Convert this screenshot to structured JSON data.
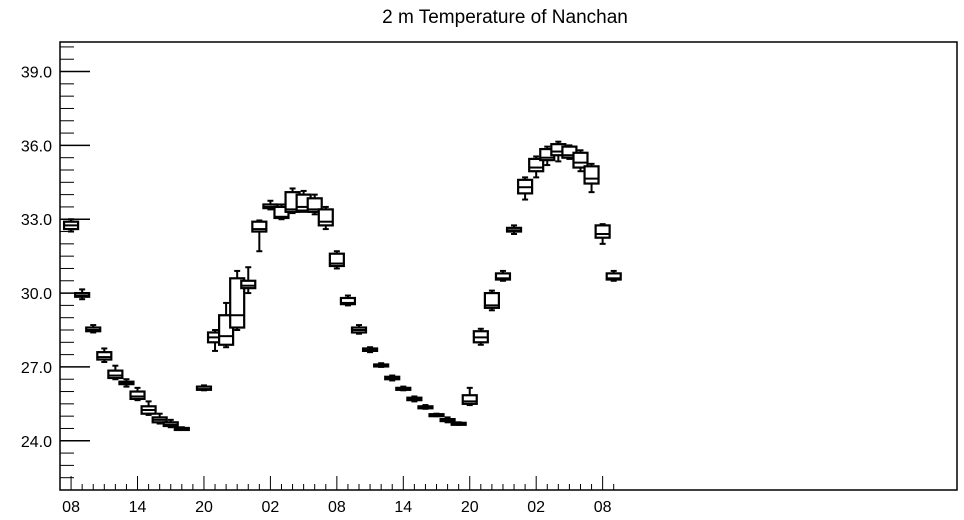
{
  "chart_data": {
    "type": "box",
    "title": "2 m Temperature of Nanchan",
    "xlabel": "",
    "ylabel": "",
    "ylim": [
      22.0,
      40.2
    ],
    "yticks": [
      "24.0",
      "27.0",
      "30.0",
      "33.0",
      "36.0",
      "39.0"
    ],
    "ytick_values": [
      24.0,
      27.0,
      30.0,
      33.0,
      36.0,
      39.0
    ],
    "y_minor_step": 0.5,
    "xlim": [
      0,
      81
    ],
    "xticks": [
      "08",
      "14",
      "20",
      "02",
      "08",
      "14",
      "20",
      "02",
      "08"
    ],
    "xtick_positions": [
      1,
      7,
      13,
      19,
      25,
      31,
      37,
      43,
      49
    ],
    "x_units": "hours (index 1 = 08)",
    "grid": false,
    "legend": "none",
    "colors": {
      "stroke": "#000000",
      "box_fill": "#ffffff",
      "background": "#ffffff"
    },
    "boxes": [
      {
        "x": 1,
        "min": 32.5,
        "q1": 32.6,
        "median": 32.75,
        "q3": 32.9,
        "max": 33.0
      },
      {
        "x": 2,
        "min": 29.75,
        "q1": 29.85,
        "median": 29.9,
        "q3": 30.0,
        "max": 30.15
      },
      {
        "x": 3,
        "min": 28.4,
        "q1": 28.45,
        "median": 28.5,
        "q3": 28.6,
        "max": 28.7
      },
      {
        "x": 4,
        "min": 27.2,
        "q1": 27.3,
        "median": 27.4,
        "q3": 27.6,
        "max": 27.75
      },
      {
        "x": 5,
        "min": 26.5,
        "q1": 26.55,
        "median": 26.65,
        "q3": 26.85,
        "max": 27.05
      },
      {
        "x": 6,
        "min": 26.2,
        "q1": 26.3,
        "median": 26.35,
        "q3": 26.4,
        "max": 26.5
      },
      {
        "x": 7,
        "min": 25.65,
        "q1": 25.7,
        "median": 25.8,
        "q3": 26.0,
        "max": 26.15
      },
      {
        "x": 8,
        "min": 25.05,
        "q1": 25.1,
        "median": 25.25,
        "q3": 25.4,
        "max": 25.6
      },
      {
        "x": 9,
        "min": 24.7,
        "q1": 24.75,
        "median": 24.85,
        "q3": 24.95,
        "max": 25.1
      },
      {
        "x": 10,
        "min": 24.55,
        "q1": 24.6,
        "median": 24.65,
        "q3": 24.75,
        "max": 24.85
      },
      {
        "x": 11,
        "min": 24.45,
        "q1": 24.47,
        "median": 24.5,
        "q3": 24.52,
        "max": 24.55
      },
      {
        "x": 13,
        "min": 26.05,
        "q1": 26.07,
        "median": 26.1,
        "q3": 26.2,
        "max": 26.25
      },
      {
        "x": 14,
        "min": 27.65,
        "q1": 28.0,
        "median": 28.2,
        "q3": 28.4,
        "max": 28.5
      },
      {
        "x": 15,
        "min": 27.8,
        "q1": 27.9,
        "median": 28.25,
        "q3": 29.1,
        "max": 29.6
      },
      {
        "x": 16,
        "min": 28.5,
        "q1": 28.6,
        "median": 29.1,
        "q3": 30.6,
        "max": 30.9
      },
      {
        "x": 17,
        "min": 30.0,
        "q1": 30.2,
        "median": 30.3,
        "q3": 30.5,
        "max": 31.05
      },
      {
        "x": 18,
        "min": 31.7,
        "q1": 32.5,
        "median": 32.6,
        "q3": 32.9,
        "max": 32.95
      },
      {
        "x": 19,
        "min": 33.4,
        "q1": 33.45,
        "median": 33.5,
        "q3": 33.6,
        "max": 33.75
      },
      {
        "x": 20,
        "min": 33.0,
        "q1": 33.05,
        "median": 33.1,
        "q3": 33.5,
        "max": 33.6
      },
      {
        "x": 21,
        "min": 33.25,
        "q1": 33.3,
        "median": 33.4,
        "q3": 34.1,
        "max": 34.25
      },
      {
        "x": 22,
        "min": 33.3,
        "q1": 33.35,
        "median": 33.5,
        "q3": 34.0,
        "max": 34.15
      },
      {
        "x": 23,
        "min": 33.2,
        "q1": 33.3,
        "median": 33.4,
        "q3": 33.85,
        "max": 34.0
      },
      {
        "x": 24,
        "min": 32.6,
        "q1": 32.75,
        "median": 32.9,
        "q3": 33.4,
        "max": 33.5
      },
      {
        "x": 25,
        "min": 31.0,
        "q1": 31.1,
        "median": 31.2,
        "q3": 31.6,
        "max": 31.7
      },
      {
        "x": 26,
        "min": 29.5,
        "q1": 29.55,
        "median": 29.6,
        "q3": 29.8,
        "max": 29.9
      },
      {
        "x": 27,
        "min": 28.35,
        "q1": 28.4,
        "median": 28.5,
        "q3": 28.6,
        "max": 28.7
      },
      {
        "x": 28,
        "min": 27.6,
        "q1": 27.65,
        "median": 27.7,
        "q3": 27.75,
        "max": 27.8
      },
      {
        "x": 29,
        "min": 27.0,
        "q1": 27.02,
        "median": 27.05,
        "q3": 27.1,
        "max": 27.15
      },
      {
        "x": 30,
        "min": 26.45,
        "q1": 26.5,
        "median": 26.55,
        "q3": 26.6,
        "max": 26.65
      },
      {
        "x": 31,
        "min": 26.05,
        "q1": 26.08,
        "median": 26.1,
        "q3": 26.15,
        "max": 26.2
      },
      {
        "x": 32,
        "min": 25.6,
        "q1": 25.65,
        "median": 25.7,
        "q3": 25.75,
        "max": 25.8
      },
      {
        "x": 33,
        "min": 25.3,
        "q1": 25.33,
        "median": 25.35,
        "q3": 25.4,
        "max": 25.45
      },
      {
        "x": 34,
        "min": 25.0,
        "q1": 25.03,
        "median": 25.05,
        "q3": 25.08,
        "max": 25.1
      },
      {
        "x": 35,
        "min": 24.75,
        "q1": 24.8,
        "median": 24.85,
        "q3": 24.88,
        "max": 24.95
      },
      {
        "x": 36,
        "min": 24.65,
        "q1": 24.68,
        "median": 24.7,
        "q3": 24.73,
        "max": 24.75
      },
      {
        "x": 37,
        "min": 25.45,
        "q1": 25.5,
        "median": 25.6,
        "q3": 25.85,
        "max": 26.15
      },
      {
        "x": 38,
        "min": 27.9,
        "q1": 28.0,
        "median": 28.2,
        "q3": 28.45,
        "max": 28.55
      },
      {
        "x": 39,
        "min": 29.3,
        "q1": 29.4,
        "median": 29.5,
        "q3": 30.0,
        "max": 30.1
      },
      {
        "x": 40,
        "min": 30.5,
        "q1": 30.55,
        "median": 30.6,
        "q3": 30.8,
        "max": 30.9
      },
      {
        "x": 41,
        "min": 32.4,
        "q1": 32.5,
        "median": 32.55,
        "q3": 32.65,
        "max": 32.75
      },
      {
        "x": 42,
        "min": 33.8,
        "q1": 34.05,
        "median": 34.3,
        "q3": 34.6,
        "max": 34.7
      },
      {
        "x": 43,
        "min": 34.7,
        "q1": 34.95,
        "median": 35.1,
        "q3": 35.45,
        "max": 35.55
      },
      {
        "x": 44,
        "min": 35.2,
        "q1": 35.4,
        "median": 35.5,
        "q3": 35.85,
        "max": 35.95
      },
      {
        "x": 45,
        "min": 35.35,
        "q1": 35.6,
        "median": 35.75,
        "q3": 36.05,
        "max": 36.15
      },
      {
        "x": 46,
        "min": 35.45,
        "q1": 35.5,
        "median": 35.6,
        "q3": 35.95,
        "max": 36.0
      },
      {
        "x": 47,
        "min": 34.95,
        "q1": 35.1,
        "median": 35.3,
        "q3": 35.7,
        "max": 35.8
      },
      {
        "x": 48,
        "min": 34.1,
        "q1": 34.45,
        "median": 34.65,
        "q3": 35.15,
        "max": 35.25
      },
      {
        "x": 49,
        "min": 32.0,
        "q1": 32.25,
        "median": 32.4,
        "q3": 32.75,
        "max": 32.8
      },
      {
        "x": 50,
        "min": 30.5,
        "q1": 30.55,
        "median": 30.6,
        "q3": 30.8,
        "max": 30.9
      }
    ]
  }
}
